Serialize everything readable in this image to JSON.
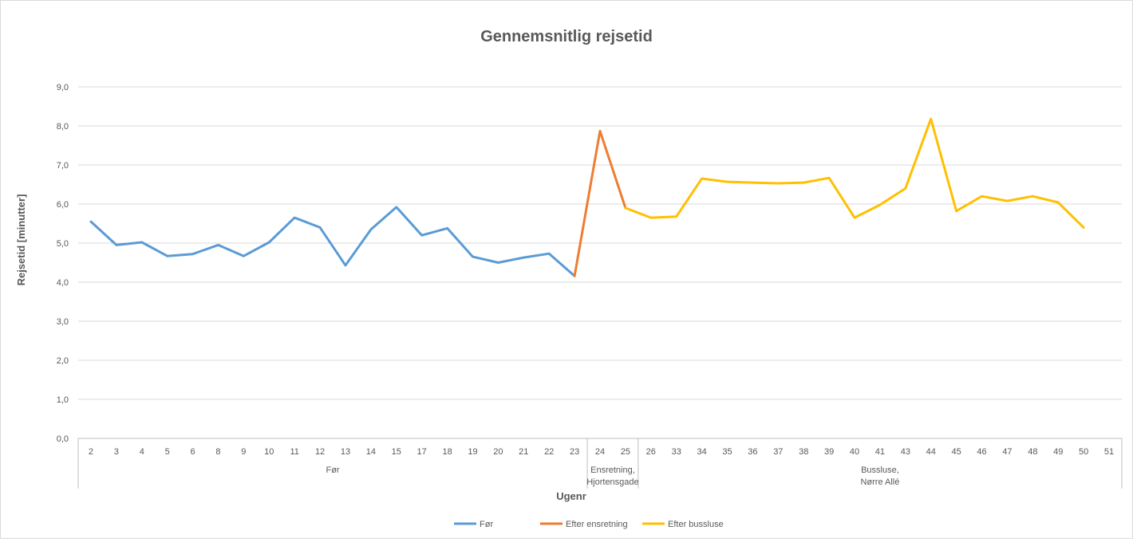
{
  "chart_data": {
    "type": "line",
    "title": "Gennemsnitlig rejsetid",
    "xlabel": "Ugenr",
    "ylabel": "Rejsetid [minutter]",
    "ylim": [
      0,
      9
    ],
    "yticks": [
      "0,0",
      "1,0",
      "2,0",
      "3,0",
      "4,0",
      "5,0",
      "6,0",
      "7,0",
      "8,0",
      "9,0"
    ],
    "grid": true,
    "legend_position": "bottom",
    "categories": [
      "2",
      "3",
      "4",
      "5",
      "6",
      "8",
      "9",
      "10",
      "11",
      "12",
      "13",
      "14",
      "15",
      "17",
      "18",
      "19",
      "20",
      "21",
      "22",
      "23",
      "24",
      "25",
      "26",
      "33",
      "34",
      "35",
      "36",
      "37",
      "38",
      "39",
      "40",
      "41",
      "43",
      "44",
      "45",
      "46",
      "47",
      "48",
      "49",
      "50",
      "51"
    ],
    "groups": [
      {
        "label": "Før",
        "count": 20
      },
      {
        "label": "Ensretning, Hjortensgade",
        "lines": [
          "Ensretning,",
          "Hjortensgade"
        ],
        "count": 2
      },
      {
        "label": "Bussluse, Nørre Allé",
        "lines": [
          "Bussluse,",
          "Nørre Allé"
        ],
        "count": 19
      }
    ],
    "series": [
      {
        "name": "Før",
        "color": "#5b9bd5",
        "values": [
          5.55,
          4.95,
          5.02,
          4.67,
          4.72,
          4.95,
          4.67,
          5.02,
          5.65,
          5.4,
          4.43,
          5.35,
          5.92,
          5.2,
          5.38,
          4.65,
          4.5,
          4.63,
          4.73,
          4.16,
          null,
          null,
          null,
          null,
          null,
          null,
          null,
          null,
          null,
          null,
          null,
          null,
          null,
          null,
          null,
          null,
          null,
          null,
          null,
          null,
          null
        ]
      },
      {
        "name": "Efter ensretning",
        "color": "#ed7d31",
        "values": [
          null,
          null,
          null,
          null,
          null,
          null,
          null,
          null,
          null,
          null,
          null,
          null,
          null,
          null,
          null,
          null,
          null,
          null,
          null,
          4.16,
          7.87,
          5.9,
          null,
          null,
          null,
          null,
          null,
          null,
          null,
          null,
          null,
          null,
          null,
          null,
          null,
          null,
          null,
          null,
          null,
          null,
          null
        ]
      },
      {
        "name": "Efter bussluse",
        "color": "#ffc000",
        "values": [
          null,
          null,
          null,
          null,
          null,
          null,
          null,
          null,
          null,
          null,
          null,
          null,
          null,
          null,
          null,
          null,
          null,
          null,
          null,
          null,
          null,
          5.9,
          5.65,
          5.68,
          6.65,
          6.57,
          6.55,
          6.53,
          6.55,
          6.67,
          5.65,
          5.98,
          6.4,
          8.18,
          5.82,
          6.2,
          6.08,
          6.2,
          6.04,
          5.4,
          null
        ]
      }
    ]
  }
}
